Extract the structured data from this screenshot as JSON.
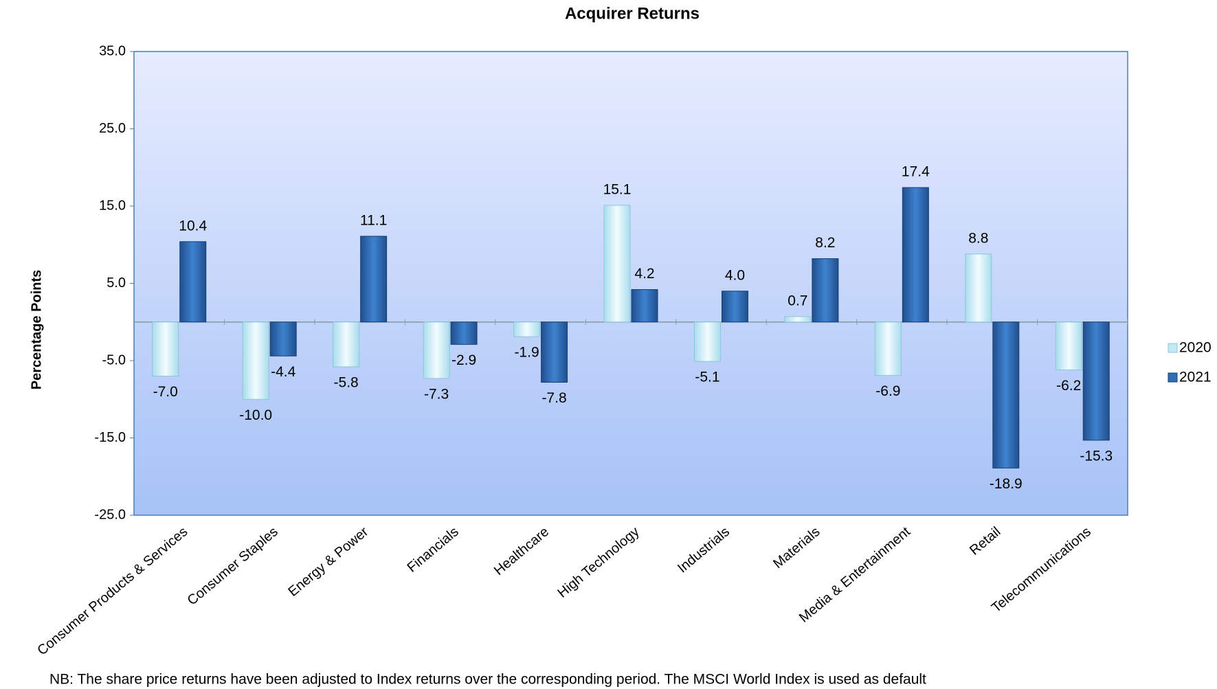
{
  "chart_data": {
    "type": "bar",
    "title": "Acquirer Returns",
    "y_label": "Percentage Points",
    "categories": [
      "Consumer Products & Services",
      "Consumer Staples",
      "Energy & Power",
      "Financials",
      "Healthcare",
      "High Technology",
      "Industrials",
      "Materials",
      "Media & Entertainment",
      "Retail",
      "Telecommunications"
    ],
    "series": [
      {
        "name": "2020",
        "color": "#bfeaf5",
        "values": [
          -7.0,
          -10.0,
          -5.8,
          -7.3,
          -1.9,
          15.1,
          -5.1,
          0.7,
          -6.9,
          8.8,
          -6.2
        ],
        "value_labels": [
          "-7.0",
          "-10.0",
          "-5.8",
          "-7.3",
          "-1.9",
          "15.1",
          "-5.1",
          "0.7",
          "-6.9",
          "8.8",
          "-6.2"
        ]
      },
      {
        "name": "2021",
        "color": "#2f6db5",
        "values": [
          10.4,
          -4.4,
          11.1,
          -2.9,
          -7.8,
          4.2,
          4.0,
          8.2,
          17.4,
          -18.9,
          -15.3
        ],
        "value_labels": [
          "10.4",
          "-4.4",
          "11.1",
          "-2.9",
          "-7.8",
          "4.2",
          "4.0",
          "8.2",
          "17.4",
          "-18.9",
          "-15.3"
        ]
      }
    ],
    "ylim": [
      -25,
      35
    ],
    "yticks": [
      {
        "value": -25,
        "label": "-25.0"
      },
      {
        "value": -15,
        "label": "-15.0"
      },
      {
        "value": -5,
        "label": "-5.0"
      },
      {
        "value": 5,
        "label": "5.0"
      },
      {
        "value": 15,
        "label": "15.0"
      },
      {
        "value": 25,
        "label": "25.0"
      },
      {
        "value": 35,
        "label": "35.0"
      }
    ],
    "legend_position": "right",
    "footnote": "NB: The share price returns have been adjusted to Index returns over the corresponding period. The MSCI World Index is used as default"
  }
}
